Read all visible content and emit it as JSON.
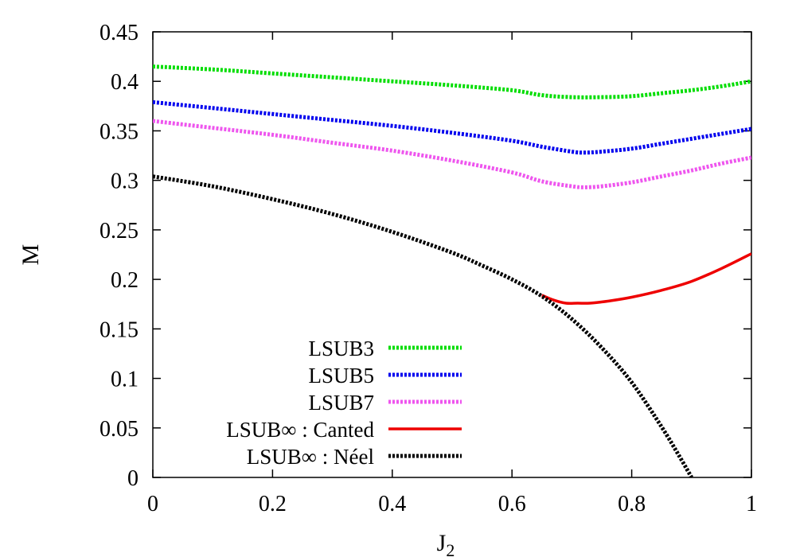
{
  "chart_data": {
    "type": "line",
    "title": "",
    "xlabel": "J",
    "xlabel_sub": "2",
    "ylabel": "M",
    "xlim": [
      0,
      1
    ],
    "ylim": [
      0,
      0.45
    ],
    "x_ticks": [
      0,
      0.2,
      0.4,
      0.6,
      0.8,
      1
    ],
    "x_tick_labels": [
      "0",
      "0.2",
      "0.4",
      "0.6",
      "0.8",
      "1"
    ],
    "y_ticks": [
      0,
      0.05,
      0.1,
      0.15,
      0.2,
      0.25,
      0.3,
      0.35,
      0.4,
      0.45
    ],
    "y_tick_labels": [
      "0",
      "0.05",
      "0.1",
      "0.15",
      "0.2",
      "0.25",
      "0.3",
      "0.35",
      "0.4",
      "0.45"
    ],
    "grid": false,
    "legend_position": "bottom-left",
    "series": [
      {
        "name": "LSUB3",
        "color": "#00dd00",
        "style": "dashed-thick",
        "x": [
          0,
          0.1,
          0.2,
          0.3,
          0.4,
          0.5,
          0.6,
          0.65,
          0.7,
          0.75,
          0.8,
          0.85,
          0.9,
          0.95,
          1.0
        ],
        "y": [
          0.415,
          0.412,
          0.408,
          0.404,
          0.4,
          0.396,
          0.391,
          0.386,
          0.384,
          0.384,
          0.385,
          0.388,
          0.391,
          0.395,
          0.4
        ]
      },
      {
        "name": "LSUB5",
        "color": "#0000ee",
        "style": "dashed-thick",
        "x": [
          0,
          0.1,
          0.2,
          0.3,
          0.4,
          0.5,
          0.6,
          0.65,
          0.7,
          0.72,
          0.75,
          0.8,
          0.85,
          0.9,
          0.95,
          1.0
        ],
        "y": [
          0.379,
          0.373,
          0.367,
          0.361,
          0.355,
          0.348,
          0.34,
          0.334,
          0.329,
          0.328,
          0.329,
          0.332,
          0.337,
          0.342,
          0.347,
          0.352
        ]
      },
      {
        "name": "LSUB7",
        "color": "#ee55ee",
        "style": "dashed-thick",
        "x": [
          0,
          0.1,
          0.2,
          0.3,
          0.4,
          0.5,
          0.6,
          0.65,
          0.7,
          0.72,
          0.75,
          0.8,
          0.85,
          0.9,
          0.95,
          1.0
        ],
        "y": [
          0.36,
          0.353,
          0.346,
          0.338,
          0.33,
          0.32,
          0.308,
          0.299,
          0.294,
          0.293,
          0.294,
          0.298,
          0.304,
          0.31,
          0.317,
          0.323
        ]
      },
      {
        "name": "LSUB∞ : Canted",
        "color": "#ee0000",
        "style": "solid",
        "x": [
          0.65,
          0.67,
          0.69,
          0.71,
          0.73,
          0.76,
          0.8,
          0.85,
          0.9,
          0.95,
          1.0
        ],
        "y": [
          0.184,
          0.179,
          0.176,
          0.176,
          0.176,
          0.178,
          0.182,
          0.189,
          0.198,
          0.211,
          0.226
        ]
      },
      {
        "name": "LSUB∞ : Néel",
        "color": "#000000",
        "style": "dashed-thick",
        "x": [
          0,
          0.1,
          0.2,
          0.3,
          0.4,
          0.5,
          0.55,
          0.6,
          0.65,
          0.7,
          0.75,
          0.8,
          0.85,
          0.88,
          0.9
        ],
        "y": [
          0.304,
          0.294,
          0.281,
          0.266,
          0.248,
          0.227,
          0.214,
          0.2,
          0.183,
          0.16,
          0.131,
          0.096,
          0.051,
          0.021,
          0.0
        ]
      }
    ]
  }
}
